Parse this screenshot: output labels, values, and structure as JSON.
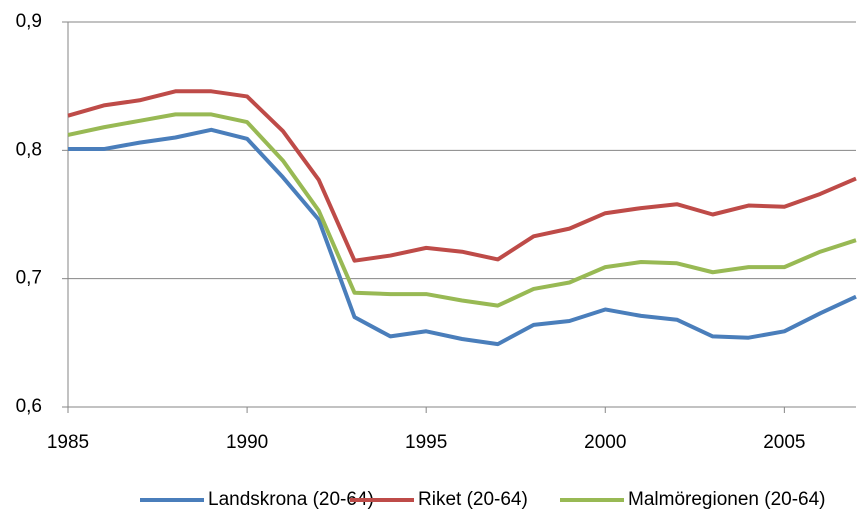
{
  "chart_data": {
    "type": "line",
    "x": [
      1985,
      1986,
      1987,
      1988,
      1989,
      1990,
      1991,
      1992,
      1993,
      1994,
      1995,
      1996,
      1997,
      1998,
      1999,
      2000,
      2001,
      2002,
      2003,
      2004,
      2005,
      2006,
      2007
    ],
    "series": [
      {
        "name": "Landskrona (20-64)",
        "color": "#4a7ebb",
        "values": [
          0.801,
          0.801,
          0.806,
          0.81,
          0.816,
          0.809,
          0.779,
          0.746,
          0.67,
          0.655,
          0.659,
          0.653,
          0.649,
          0.664,
          0.667,
          0.676,
          0.671,
          0.668,
          0.655,
          0.654,
          0.659,
          0.673,
          0.686
        ]
      },
      {
        "name": "Riket (20-64)",
        "color": "#be4b48",
        "values": [
          0.827,
          0.835,
          0.839,
          0.846,
          0.846,
          0.842,
          0.815,
          0.777,
          0.714,
          0.718,
          0.724,
          0.721,
          0.715,
          0.733,
          0.739,
          0.751,
          0.755,
          0.758,
          0.75,
          0.757,
          0.756,
          0.766,
          0.778
        ]
      },
      {
        "name": "Malmöregionen (20-64)",
        "color": "#98b954",
        "values": [
          0.812,
          0.818,
          0.823,
          0.828,
          0.828,
          0.822,
          0.792,
          0.753,
          0.689,
          0.688,
          0.688,
          0.683,
          0.679,
          0.692,
          0.697,
          0.709,
          0.713,
          0.712,
          0.705,
          0.709,
          0.709,
          0.721,
          0.73
        ]
      }
    ],
    "xlim": [
      1985,
      2007
    ],
    "xticks": [
      1985,
      1990,
      1995,
      2000,
      2005
    ],
    "ylim": [
      0.6,
      0.9
    ],
    "yticks": [
      {
        "value": 0.6,
        "label": "0,6"
      },
      {
        "value": 0.7,
        "label": "0,7"
      },
      {
        "value": 0.8,
        "label": "0,8"
      },
      {
        "value": 0.9,
        "label": "0,9"
      }
    ],
    "grid": true,
    "legend": "bottom"
  }
}
